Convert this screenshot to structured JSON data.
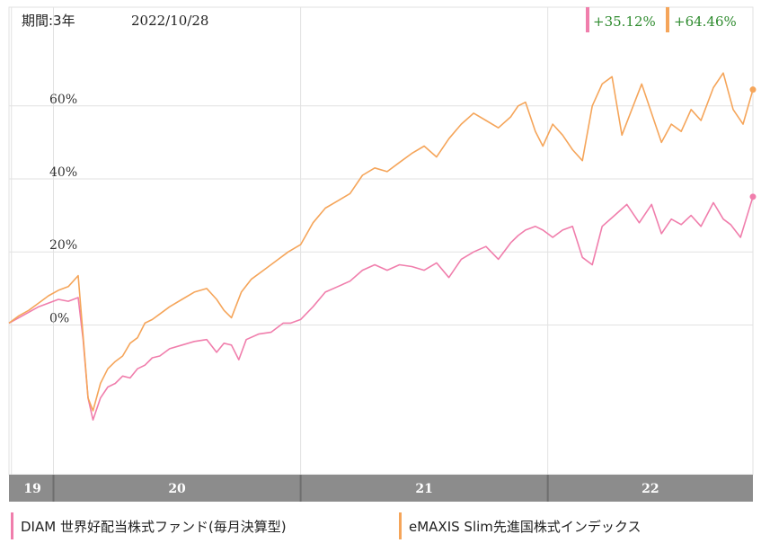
{
  "header": {
    "period_label": "期間:3年",
    "date_label": "2022/10/28"
  },
  "returns": [
    {
      "series": "DIAM 世界好配当株式ファンド(毎月決算型)",
      "text": "+35.12%",
      "color": "#f07eac"
    },
    {
      "series": "eMAXIS Slim先進国株式インデックス",
      "text": "+64.46%",
      "color": "#f5a55a"
    }
  ],
  "legend": [
    {
      "label": "DIAM 世界好配当株式ファンド(毎月決算型)",
      "color": "#f07eac"
    },
    {
      "label": "eMAXIS Slim先進国株式インデックス",
      "color": "#f5a55a"
    }
  ],
  "colors": {
    "gain_text": "#2e8b2e",
    "axis_bar": "#8c8c8c",
    "axis_bar_text": "#ffffff",
    "grid": "#e2e2e2"
  },
  "chart_data": {
    "type": "line",
    "x_unit": "year",
    "x_ticks": [
      {
        "label": "19",
        "value": 2019.83
      },
      {
        "label": "20",
        "value": 2020.0
      },
      {
        "label": "21",
        "value": 2021.0
      },
      {
        "label": "22",
        "value": 2022.0
      }
    ],
    "y_ticks": [
      {
        "label": "0%",
        "value": 0
      },
      {
        "label": "20%",
        "value": 20
      },
      {
        "label": "40%",
        "value": 40
      },
      {
        "label": "60%",
        "value": 60
      }
    ],
    "xlim": [
      2019.82,
      2022.83
    ],
    "ylim": [
      -41,
      89
    ],
    "grid": true,
    "legend_position": "bottom",
    "series": [
      {
        "name": "DIAM 世界好配当株式ファンド(毎月決算型)",
        "color": "#f07eac",
        "end_value": 35.12,
        "points": [
          [
            2019.82,
            0.5
          ],
          [
            2019.86,
            2.0
          ],
          [
            2019.9,
            3.5
          ],
          [
            2019.94,
            5.0
          ],
          [
            2019.98,
            6.0
          ],
          [
            2020.02,
            7.0
          ],
          [
            2020.06,
            6.5
          ],
          [
            2020.1,
            7.5
          ],
          [
            2020.12,
            -4.0
          ],
          [
            2020.14,
            -20.0
          ],
          [
            2020.16,
            -26.0
          ],
          [
            2020.19,
            -20.0
          ],
          [
            2020.22,
            -17.0
          ],
          [
            2020.25,
            -16.0
          ],
          [
            2020.28,
            -14.0
          ],
          [
            2020.31,
            -14.5
          ],
          [
            2020.34,
            -12.0
          ],
          [
            2020.37,
            -11.0
          ],
          [
            2020.4,
            -9.0
          ],
          [
            2020.43,
            -8.5
          ],
          [
            2020.47,
            -6.5
          ],
          [
            2020.52,
            -5.5
          ],
          [
            2020.57,
            -4.5
          ],
          [
            2020.62,
            -4.0
          ],
          [
            2020.66,
            -7.5
          ],
          [
            2020.69,
            -5.0
          ],
          [
            2020.72,
            -5.5
          ],
          [
            2020.75,
            -9.5
          ],
          [
            2020.78,
            -4.0
          ],
          [
            2020.83,
            -2.5
          ],
          [
            2020.88,
            -2.0
          ],
          [
            2020.93,
            0.5
          ],
          [
            2020.96,
            0.5
          ],
          [
            2021.0,
            1.5
          ],
          [
            2021.05,
            5.0
          ],
          [
            2021.1,
            9.0
          ],
          [
            2021.15,
            10.5
          ],
          [
            2021.2,
            12.0
          ],
          [
            2021.25,
            15.0
          ],
          [
            2021.3,
            16.5
          ],
          [
            2021.35,
            15.0
          ],
          [
            2021.4,
            16.5
          ],
          [
            2021.45,
            16.0
          ],
          [
            2021.5,
            15.0
          ],
          [
            2021.55,
            17.0
          ],
          [
            2021.6,
            13.0
          ],
          [
            2021.65,
            18.0
          ],
          [
            2021.7,
            20.0
          ],
          [
            2021.75,
            21.5
          ],
          [
            2021.8,
            18.0
          ],
          [
            2021.85,
            22.5
          ],
          [
            2021.88,
            24.5
          ],
          [
            2021.91,
            26.0
          ],
          [
            2021.95,
            27.0
          ],
          [
            2021.98,
            26.0
          ],
          [
            2022.02,
            24.0
          ],
          [
            2022.06,
            26.0
          ],
          [
            2022.1,
            27.0
          ],
          [
            2022.14,
            18.5
          ],
          [
            2022.18,
            16.5
          ],
          [
            2022.22,
            27.0
          ],
          [
            2022.27,
            30.0
          ],
          [
            2022.32,
            33.0
          ],
          [
            2022.37,
            28.0
          ],
          [
            2022.42,
            33.0
          ],
          [
            2022.46,
            25.0
          ],
          [
            2022.5,
            29.0
          ],
          [
            2022.54,
            27.5
          ],
          [
            2022.58,
            30.0
          ],
          [
            2022.62,
            27.0
          ],
          [
            2022.67,
            33.5
          ],
          [
            2022.71,
            29.0
          ],
          [
            2022.74,
            27.5
          ],
          [
            2022.78,
            24.0
          ],
          [
            2022.83,
            35.12
          ]
        ]
      },
      {
        "name": "eMAXIS Slim先進国株式インデックス",
        "color": "#f5a55a",
        "end_value": 64.46,
        "points": [
          [
            2019.82,
            0.5
          ],
          [
            2019.86,
            2.5
          ],
          [
            2019.9,
            4.0
          ],
          [
            2019.94,
            6.0
          ],
          [
            2019.98,
            8.0
          ],
          [
            2020.02,
            9.5
          ],
          [
            2020.06,
            10.5
          ],
          [
            2020.1,
            13.5
          ],
          [
            2020.12,
            -3.0
          ],
          [
            2020.14,
            -20.0
          ],
          [
            2020.16,
            -23.5
          ],
          [
            2020.19,
            -16.0
          ],
          [
            2020.22,
            -12.0
          ],
          [
            2020.25,
            -10.0
          ],
          [
            2020.28,
            -8.5
          ],
          [
            2020.31,
            -5.0
          ],
          [
            2020.34,
            -3.5
          ],
          [
            2020.37,
            0.5
          ],
          [
            2020.4,
            1.5
          ],
          [
            2020.43,
            3.0
          ],
          [
            2020.47,
            5.0
          ],
          [
            2020.52,
            7.0
          ],
          [
            2020.57,
            9.0
          ],
          [
            2020.62,
            10.0
          ],
          [
            2020.66,
            7.0
          ],
          [
            2020.69,
            4.0
          ],
          [
            2020.72,
            2.0
          ],
          [
            2020.76,
            9.0
          ],
          [
            2020.8,
            12.5
          ],
          [
            2020.85,
            15.0
          ],
          [
            2020.9,
            17.5
          ],
          [
            2020.95,
            20.0
          ],
          [
            2021.0,
            22.0
          ],
          [
            2021.05,
            28.0
          ],
          [
            2021.1,
            32.0
          ],
          [
            2021.15,
            34.0
          ],
          [
            2021.2,
            36.0
          ],
          [
            2021.25,
            41.0
          ],
          [
            2021.3,
            43.0
          ],
          [
            2021.35,
            42.0
          ],
          [
            2021.4,
            44.5
          ],
          [
            2021.45,
            47.0
          ],
          [
            2021.5,
            49.0
          ],
          [
            2021.55,
            46.0
          ],
          [
            2021.6,
            51.0
          ],
          [
            2021.65,
            55.0
          ],
          [
            2021.7,
            58.0
          ],
          [
            2021.75,
            56.0
          ],
          [
            2021.8,
            54.0
          ],
          [
            2021.85,
            57.0
          ],
          [
            2021.88,
            60.0
          ],
          [
            2021.91,
            61.0
          ],
          [
            2021.95,
            53.0
          ],
          [
            2021.98,
            49.0
          ],
          [
            2022.02,
            55.0
          ],
          [
            2022.06,
            52.0
          ],
          [
            2022.1,
            48.0
          ],
          [
            2022.14,
            45.0
          ],
          [
            2022.18,
            60.0
          ],
          [
            2022.22,
            66.0
          ],
          [
            2022.26,
            68.0
          ],
          [
            2022.3,
            52.0
          ],
          [
            2022.34,
            59.0
          ],
          [
            2022.38,
            66.0
          ],
          [
            2022.42,
            58.0
          ],
          [
            2022.46,
            50.0
          ],
          [
            2022.5,
            55.0
          ],
          [
            2022.54,
            53.0
          ],
          [
            2022.58,
            59.0
          ],
          [
            2022.62,
            56.0
          ],
          [
            2022.67,
            65.0
          ],
          [
            2022.71,
            69.0
          ],
          [
            2022.75,
            59.0
          ],
          [
            2022.79,
            55.0
          ],
          [
            2022.83,
            64.46
          ]
        ]
      }
    ]
  }
}
